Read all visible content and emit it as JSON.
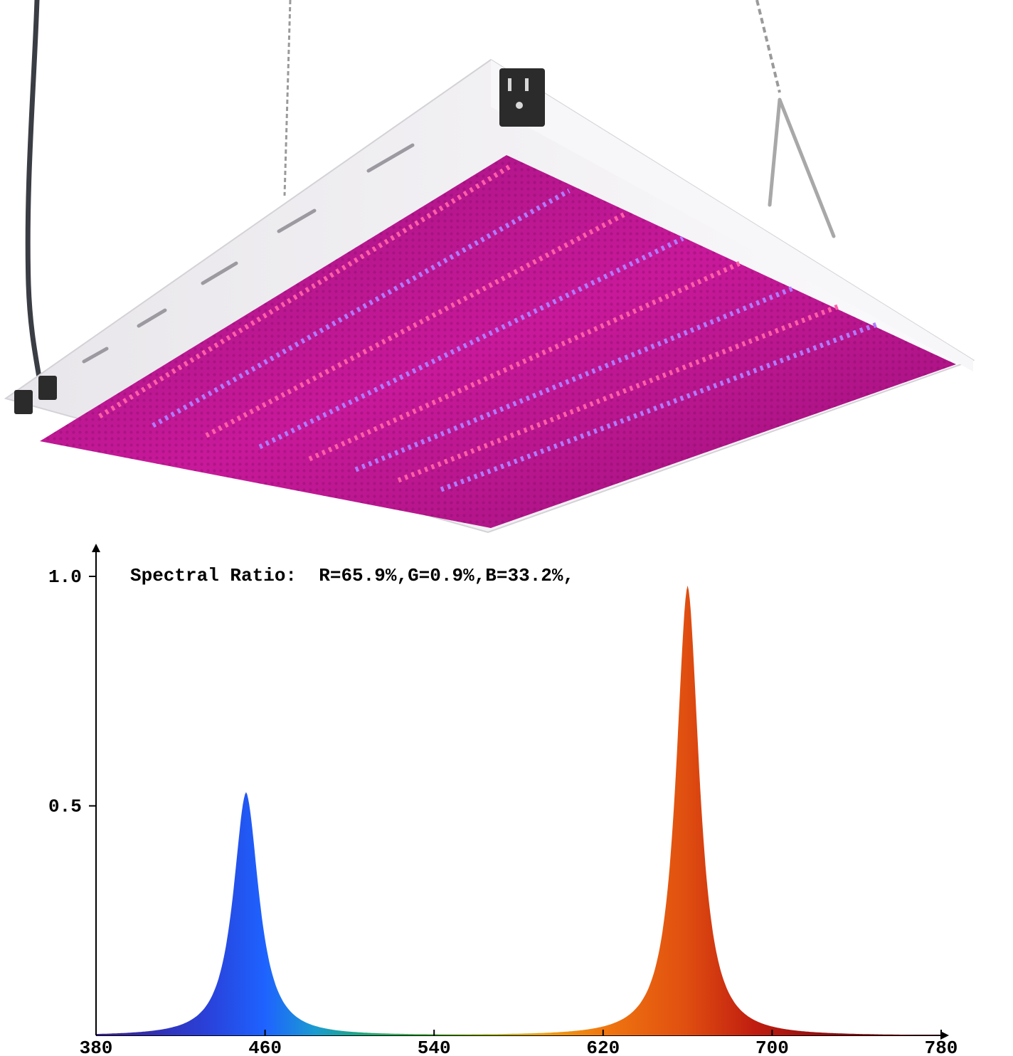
{
  "chart_data": {
    "type": "area",
    "title": "Spectral Ratio:  R=65.9%,G=0.9%,B=33.2%,",
    "xlabel": "",
    "ylabel": "",
    "xlim": [
      380,
      780
    ],
    "ylim": [
      0,
      1.0
    ],
    "x_ticks": [
      "380",
      "460",
      "540",
      "620",
      "700",
      "780"
    ],
    "y_ticks": [
      "0.5",
      "1.0"
    ],
    "series": [
      {
        "peaks": [
          {
            "center_nm": 451,
            "value": 0.53,
            "fwhm_nm": 20
          },
          {
            "center_nm": 660,
            "value": 0.98,
            "fwhm_nm": 18
          }
        ]
      }
    ],
    "grid": false,
    "legend": "none"
  },
  "product": {
    "colors": {
      "frame": "#f4f2f6",
      "led_glow": "#c8199a",
      "led_red": "#ff3a6a",
      "led_blue": "#7a5cff",
      "cord": "#3a3d44",
      "switch": "#2b2b2b"
    },
    "icons": [
      "power-outlet-icon",
      "rocker-switch-icon"
    ]
  }
}
